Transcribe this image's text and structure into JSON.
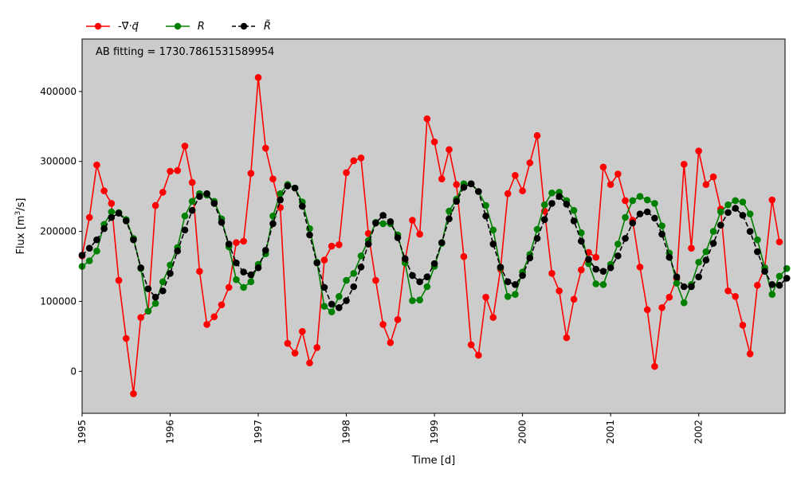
{
  "legend": {
    "items": [
      {
        "label": "-∇⃗·q⃗",
        "color": "#ff0000",
        "dashed": false
      },
      {
        "label": "R",
        "color": "#008000",
        "dashed": false
      },
      {
        "label": "R̃",
        "color": "#000000",
        "dashed": true
      }
    ]
  },
  "annotation": "AB fitting = 1730.7861531589954",
  "chart_data": {
    "type": "line",
    "xlabel": "Time [d]",
    "ylabel": "Flux [m³/s]",
    "xlim": [
      1995.0,
      2002.98
    ],
    "ylim": [
      -60000,
      475000
    ],
    "background": "#cccccc",
    "grid": false,
    "legend_position": "above-top-left",
    "x_ticks": [
      1995,
      1996,
      1997,
      1998,
      1999,
      2000,
      2001,
      2002
    ],
    "x_tick_labels": [
      "1995",
      "1996",
      "1997",
      "1998",
      "1999",
      "2000",
      "2001",
      "2002"
    ],
    "y_ticks": [
      0,
      100000,
      200000,
      300000,
      400000
    ],
    "y_tick_labels": [
      "0",
      "100000",
      "200000",
      "300000",
      "400000"
    ],
    "x_start": 1995.0,
    "x_step": 0.08333,
    "series": [
      {
        "name": "-∇⃗·q⃗",
        "color": "#ff0000",
        "dashed": false,
        "values": [
          165000,
          220000,
          295000,
          258000,
          240000,
          130000,
          47000,
          -32000,
          77000,
          86000,
          237000,
          256000,
          286000,
          287000,
          322000,
          270000,
          143000,
          67000,
          78000,
          95000,
          120000,
          184000,
          186000,
          283000,
          420000,
          319000,
          275000,
          234000,
          40000,
          26000,
          57000,
          12000,
          34000,
          159000,
          179000,
          181000,
          284000,
          301000,
          305000,
          197000,
          130000,
          67000,
          41000,
          74000,
          159000,
          216000,
          196000,
          361000,
          328000,
          275000,
          317000,
          267000,
          164000,
          38000,
          23000,
          106000,
          77000,
          146000,
          254000,
          280000,
          258000,
          298000,
          337000,
          229000,
          140000,
          115000,
          48000,
          103000,
          145000,
          170000,
          163000,
          292000,
          267000,
          282000,
          244000,
          216000,
          149000,
          88000,
          7000,
          91000,
          106000,
          133000,
          296000,
          176000,
          315000,
          267000,
          278000,
          232000,
          115000,
          107000,
          66000,
          25000,
          123000,
          148000,
          245000,
          185000
        ]
      },
      {
        "name": "R",
        "color": "#008000",
        "dashed": false,
        "values": [
          150000,
          158000,
          172000,
          210000,
          228000,
          227000,
          217000,
          190000,
          147000,
          86000,
          97000,
          128000,
          152000,
          177000,
          222000,
          243000,
          254000,
          252000,
          243000,
          218000,
          178000,
          131000,
          120000,
          128000,
          153000,
          168000,
          222000,
          254000,
          267000,
          262000,
          242000,
          204000,
          156000,
          93000,
          85000,
          107000,
          130000,
          140000,
          165000,
          187000,
          213000,
          211000,
          211000,
          195000,
          155000,
          101000,
          102000,
          121000,
          150000,
          183000,
          229000,
          246000,
          268000,
          268000,
          257000,
          237000,
          202000,
          148000,
          107000,
          110000,
          142000,
          167000,
          203000,
          238000,
          255000,
          256000,
          244000,
          230000,
          198000,
          154000,
          125000,
          124000,
          153000,
          182000,
          220000,
          244000,
          250000,
          245000,
          240000,
          208000,
          169000,
          126000,
          98000,
          124000,
          156000,
          171000,
          200000,
          228000,
          238000,
          244000,
          242000,
          225000,
          188000,
          148000,
          110000,
          136000,
          147000
        ]
      },
      {
        "name": "R̃",
        "color": "#000000",
        "dashed": true,
        "values": [
          166000,
          176000,
          188000,
          204000,
          220000,
          226000,
          215000,
          188000,
          148000,
          118000,
          106000,
          115000,
          140000,
          172000,
          202000,
          230000,
          250000,
          254000,
          240000,
          213000,
          182000,
          155000,
          142000,
          138000,
          148000,
          173000,
          211000,
          245000,
          265000,
          262000,
          236000,
          195000,
          155000,
          120000,
          96000,
          91000,
          101000,
          121000,
          149000,
          182000,
          212000,
          223000,
          214000,
          191000,
          161000,
          137000,
          128000,
          135000,
          154000,
          184000,
          218000,
          243000,
          263000,
          268000,
          257000,
          222000,
          182000,
          149000,
          128000,
          124000,
          137000,
          162000,
          190000,
          217000,
          240000,
          250000,
          239000,
          215000,
          186000,
          160000,
          146000,
          143000,
          148000,
          165000,
          190000,
          212000,
          225000,
          228000,
          219000,
          196000,
          163000,
          135000,
          121000,
          121000,
          135000,
          159000,
          183000,
          209000,
          227000,
          233000,
          223000,
          200000,
          171000,
          143000,
          124000,
          123000,
          133000
        ]
      }
    ]
  }
}
